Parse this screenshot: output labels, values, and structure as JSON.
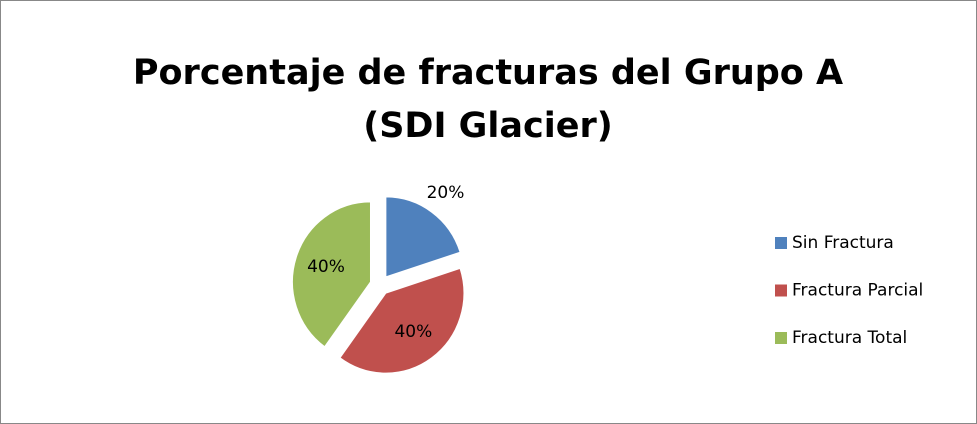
{
  "chart_data": {
    "type": "pie",
    "title": [
      "Porcentaje de fracturas del Grupo A",
      "(SDI Glacier)"
    ],
    "categories": [
      "Sin Fractura",
      "Fractura Parcial",
      "Fractura Total"
    ],
    "values": [
      20,
      40,
      40
    ],
    "value_labels": [
      "20%",
      "40%",
      "40%"
    ],
    "colors": [
      "#4f81bd",
      "#c0504d",
      "#9bbb59"
    ],
    "legend": "right"
  }
}
